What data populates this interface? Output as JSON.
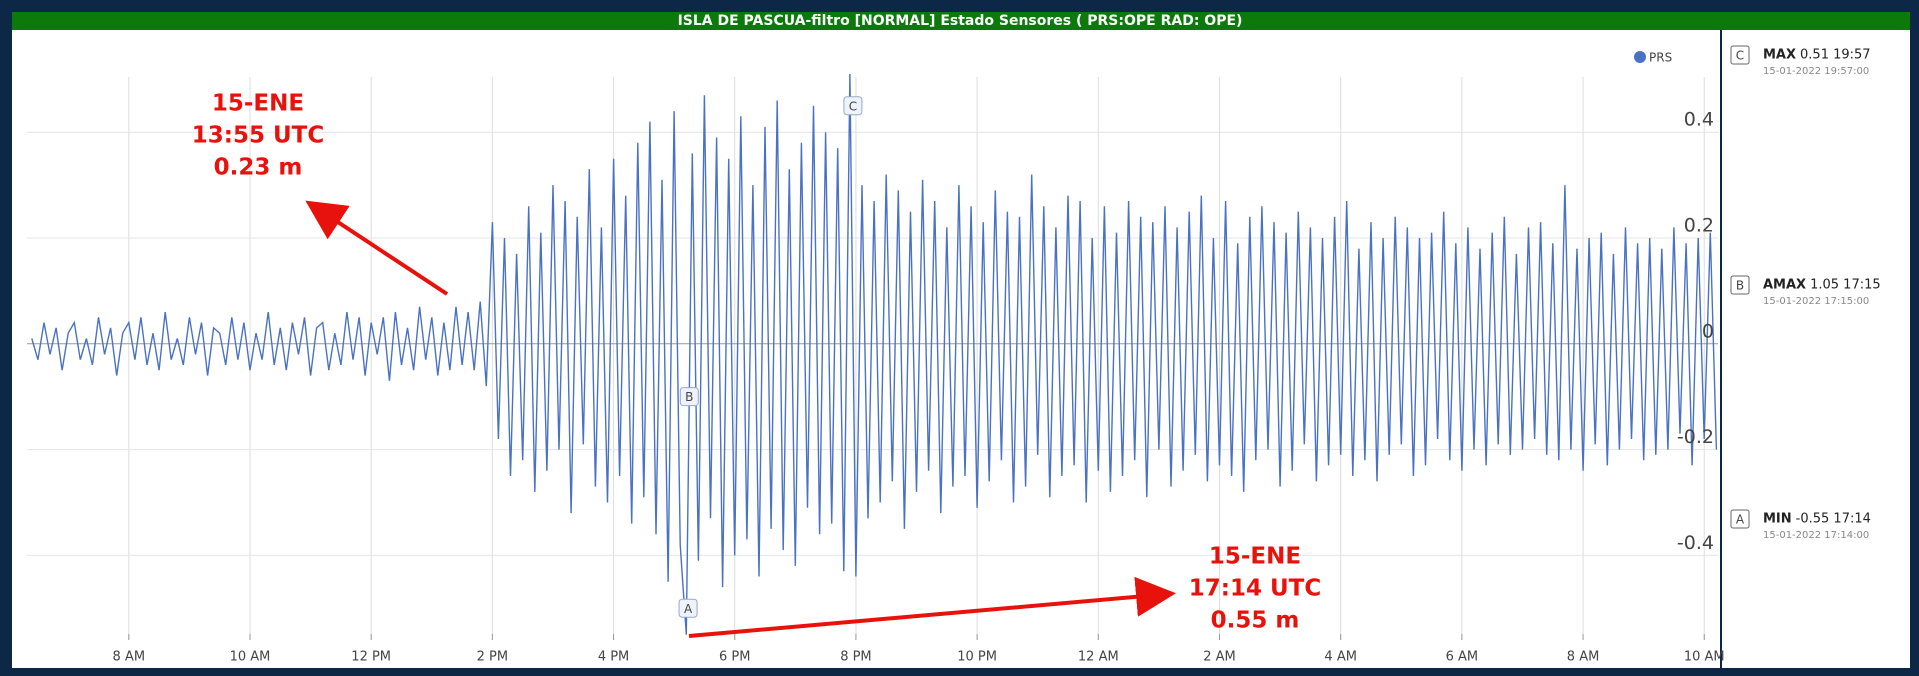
{
  "chart_data": {
    "type": "line",
    "title": "ISLA DE PASCUA-filtro [NORMAL] Estado Sensores ( PRS:OPE RAD: OPE)",
    "x": [
      6.4,
      6.5,
      6.6,
      6.7,
      6.8,
      6.9,
      7.0,
      7.1,
      7.2,
      7.3,
      7.4,
      7.5,
      7.6,
      7.7,
      7.8,
      7.9,
      8.0,
      8.1,
      8.2,
      8.3,
      8.4,
      8.5,
      8.6,
      8.7,
      8.8,
      8.9,
      9.0,
      9.1,
      9.2,
      9.3,
      9.4,
      9.5,
      9.6,
      9.7,
      9.8,
      9.9,
      10.0,
      10.1,
      10.2,
      10.3,
      10.4,
      10.5,
      10.6,
      10.7,
      10.8,
      10.9,
      11.0,
      11.1,
      11.2,
      11.3,
      11.4,
      11.5,
      11.6,
      11.7,
      11.8,
      11.9,
      12.0,
      12.1,
      12.2,
      12.3,
      12.4,
      12.5,
      12.6,
      12.7,
      12.8,
      12.9,
      13.0,
      13.1,
      13.2,
      13.3,
      13.4,
      13.5,
      13.6,
      13.7,
      13.8,
      13.9,
      14.0,
      14.1,
      14.2,
      14.3,
      14.4,
      14.5,
      14.6,
      14.7,
      14.8,
      14.9,
      15.0,
      15.1,
      15.2,
      15.3,
      15.4,
      15.5,
      15.6,
      15.7,
      15.8,
      15.9,
      16.0,
      16.1,
      16.2,
      16.3,
      16.4,
      16.5,
      16.6,
      16.7,
      16.8,
      16.9,
      17.0,
      17.1,
      17.2,
      17.3,
      17.4,
      17.5,
      17.6,
      17.7,
      17.8,
      17.9,
      18.0,
      18.1,
      18.2,
      18.3,
      18.4,
      18.5,
      18.6,
      18.7,
      18.8,
      18.9,
      19.0,
      19.1,
      19.2,
      19.3,
      19.4,
      19.5,
      19.6,
      19.7,
      19.8,
      19.9,
      20.0,
      20.1,
      20.2,
      20.3,
      20.4,
      20.5,
      20.6,
      20.7,
      20.8,
      20.9,
      21.0,
      21.1,
      21.2,
      21.3,
      21.4,
      21.5,
      21.6,
      21.7,
      21.8,
      21.9,
      22.0,
      22.1,
      22.2,
      22.3,
      22.4,
      22.5,
      22.6,
      22.7,
      22.8,
      22.9,
      23.0,
      23.1,
      23.2,
      23.3,
      23.4,
      23.5,
      23.6,
      23.7,
      23.8,
      23.9,
      24.0,
      24.1,
      24.2,
      24.3,
      24.4,
      24.5,
      24.6,
      24.7,
      24.8,
      24.9,
      25.0,
      25.1,
      25.2,
      25.3,
      25.4,
      25.5,
      25.6,
      25.7,
      25.8,
      25.9,
      26.0,
      26.1,
      26.2,
      26.3,
      26.4,
      26.5,
      26.6,
      26.7,
      26.8,
      26.9,
      27.0,
      27.1,
      27.2,
      27.3,
      27.4,
      27.5,
      27.6,
      27.7,
      27.8,
      27.9,
      28.0,
      28.1,
      28.2,
      28.3,
      28.4,
      28.5,
      28.6,
      28.7,
      28.8,
      28.9,
      29.0,
      29.1,
      29.2,
      29.3,
      29.4,
      29.5,
      29.6,
      29.7,
      29.8,
      29.9,
      30.0,
      30.1,
      30.2,
      30.3,
      30.4,
      30.5,
      30.6,
      30.7,
      30.8,
      30.9,
      31.0,
      31.1,
      31.2,
      31.3,
      31.4,
      31.5,
      31.6,
      31.7,
      31.8,
      31.9,
      32.0,
      32.1,
      32.2,
      32.3,
      32.4,
      32.5,
      32.6,
      32.7,
      32.8,
      32.9,
      33.0,
      33.1,
      33.2,
      33.3,
      33.4,
      33.5,
      33.6,
      33.7,
      33.8,
      33.9,
      34.0,
      34.1,
      34.2
    ],
    "series": [
      {
        "name": "PRS",
        "color": "#4a72c4",
        "values": [
          0.01,
          -0.03,
          0.04,
          -0.02,
          0.03,
          -0.05,
          0.02,
          0.04,
          -0.03,
          0.01,
          -0.04,
          0.05,
          -0.02,
          0.03,
          -0.06,
          0.02,
          0.04,
          -0.03,
          0.05,
          -0.04,
          0.02,
          -0.05,
          0.06,
          -0.03,
          0.01,
          -0.04,
          0.05,
          -0.02,
          0.04,
          -0.06,
          0.03,
          0.02,
          -0.04,
          0.05,
          -0.03,
          0.04,
          -0.05,
          0.02,
          -0.03,
          0.06,
          -0.04,
          0.03,
          -0.05,
          0.04,
          -0.02,
          0.05,
          -0.06,
          0.03,
          0.04,
          -0.05,
          0.02,
          -0.04,
          0.06,
          -0.03,
          0.05,
          -0.06,
          0.04,
          -0.02,
          0.05,
          -0.07,
          0.06,
          -0.04,
          0.03,
          -0.05,
          0.07,
          -0.03,
          0.05,
          -0.06,
          0.04,
          -0.05,
          0.07,
          -0.04,
          0.06,
          -0.05,
          0.08,
          -0.08,
          0.23,
          -0.18,
          0.2,
          -0.25,
          0.17,
          -0.22,
          0.26,
          -0.28,
          0.21,
          -0.24,
          0.3,
          -0.2,
          0.27,
          -0.32,
          0.24,
          -0.19,
          0.33,
          -0.27,
          0.22,
          -0.3,
          0.35,
          -0.25,
          0.28,
          -0.34,
          0.38,
          -0.29,
          0.42,
          -0.36,
          0.31,
          -0.45,
          0.44,
          -0.38,
          -0.55,
          0.36,
          -0.41,
          0.47,
          -0.33,
          0.39,
          -0.46,
          0.35,
          -0.4,
          0.43,
          -0.37,
          0.3,
          -0.44,
          0.41,
          -0.35,
          0.46,
          -0.39,
          0.33,
          -0.42,
          0.38,
          -0.31,
          0.45,
          -0.36,
          0.4,
          -0.34,
          0.37,
          -0.43,
          0.51,
          -0.44,
          0.3,
          -0.33,
          0.27,
          -0.3,
          0.32,
          -0.26,
          0.29,
          -0.35,
          0.25,
          -0.28,
          0.31,
          -0.24,
          0.27,
          -0.32,
          0.22,
          -0.27,
          0.3,
          -0.25,
          0.26,
          -0.31,
          0.23,
          -0.26,
          0.29,
          -0.22,
          0.25,
          -0.3,
          0.24,
          -0.27,
          0.32,
          -0.21,
          0.26,
          -0.29,
          0.22,
          -0.25,
          0.28,
          -0.23,
          0.27,
          -0.3,
          0.2,
          -0.24,
          0.26,
          -0.28,
          0.21,
          -0.25,
          0.27,
          -0.22,
          0.24,
          -0.29,
          0.23,
          -0.2,
          0.26,
          -0.27,
          0.22,
          -0.24,
          0.25,
          -0.21,
          0.28,
          -0.26,
          0.2,
          -0.23,
          0.27,
          -0.25,
          0.19,
          -0.28,
          0.24,
          -0.22,
          0.26,
          -0.2,
          0.23,
          -0.27,
          0.21,
          -0.24,
          0.25,
          -0.19,
          0.22,
          -0.26,
          0.2,
          -0.23,
          0.24,
          -0.21,
          0.27,
          -0.25,
          0.18,
          -0.22,
          0.23,
          -0.26,
          0.2,
          -0.21,
          0.24,
          -0.19,
          0.22,
          -0.25,
          0.2,
          -0.23,
          0.21,
          -0.18,
          0.25,
          -0.22,
          0.19,
          -0.24,
          0.22,
          -0.2,
          0.18,
          -0.23,
          0.21,
          -0.19,
          0.24,
          -0.21,
          0.17,
          -0.2,
          0.22,
          -0.18,
          0.23,
          -0.21,
          0.19,
          -0.22,
          0.3,
          -0.2,
          0.18,
          -0.24,
          0.2,
          -0.19,
          0.21,
          -0.23,
          0.17,
          -0.2,
          0.22,
          -0.18,
          0.19,
          -0.22,
          0.2,
          -0.21,
          0.18,
          -0.2,
          0.22,
          -0.17,
          0.19,
          -0.23,
          0.2,
          -0.18,
          0.21,
          -0.2
        ]
      }
    ],
    "xlim": [
      6.32,
      34.26
    ],
    "xticks": [
      {
        "value": 8,
        "label": "8 AM"
      },
      {
        "value": 10,
        "label": "10 AM"
      },
      {
        "value": 12,
        "label": "12 PM"
      },
      {
        "value": 14,
        "label": "2 PM"
      },
      {
        "value": 16,
        "label": "4 PM"
      },
      {
        "value": 18,
        "label": "6 PM"
      },
      {
        "value": 20,
        "label": "8 PM"
      },
      {
        "value": 22,
        "label": "10 PM"
      },
      {
        "value": 24,
        "label": "12 AM"
      },
      {
        "value": 26,
        "label": "2 AM"
      },
      {
        "value": 28,
        "label": "4 AM"
      },
      {
        "value": 30,
        "label": "6 AM"
      },
      {
        "value": 32,
        "label": "8 AM"
      },
      {
        "value": 34,
        "label": "10 AM"
      }
    ],
    "ylim": [
      -0.56,
      0.58
    ],
    "yticks": [
      -0.4,
      -0.2,
      0,
      0.2,
      0.4
    ],
    "grid": true,
    "legend": "top-right",
    "flags": [
      {
        "label": "C",
        "x": 19.95,
        "y": 0.45
      },
      {
        "label": "B",
        "x": 17.25,
        "y": -0.1
      },
      {
        "label": "A",
        "x": 17.23,
        "y": -0.5
      }
    ],
    "annotations": [
      [
        "15-ENE",
        "13:55 UTC",
        "0.23 m"
      ],
      [
        "15-ENE",
        "17:14 UTC",
        "0.55 m"
      ]
    ],
    "stats": [
      {
        "flag": "C",
        "name": "MAX",
        "value": "0.51 19:57",
        "date": "15-01-2022 19:57:00"
      },
      {
        "flag": "B",
        "name": "AMAX",
        "value": "1.05 17:15",
        "date": "15-01-2022 17:15:00"
      },
      {
        "flag": "A",
        "name": "MIN",
        "value": "-0.55 17:14",
        "date": "15-01-2022 17:14:00"
      }
    ]
  }
}
